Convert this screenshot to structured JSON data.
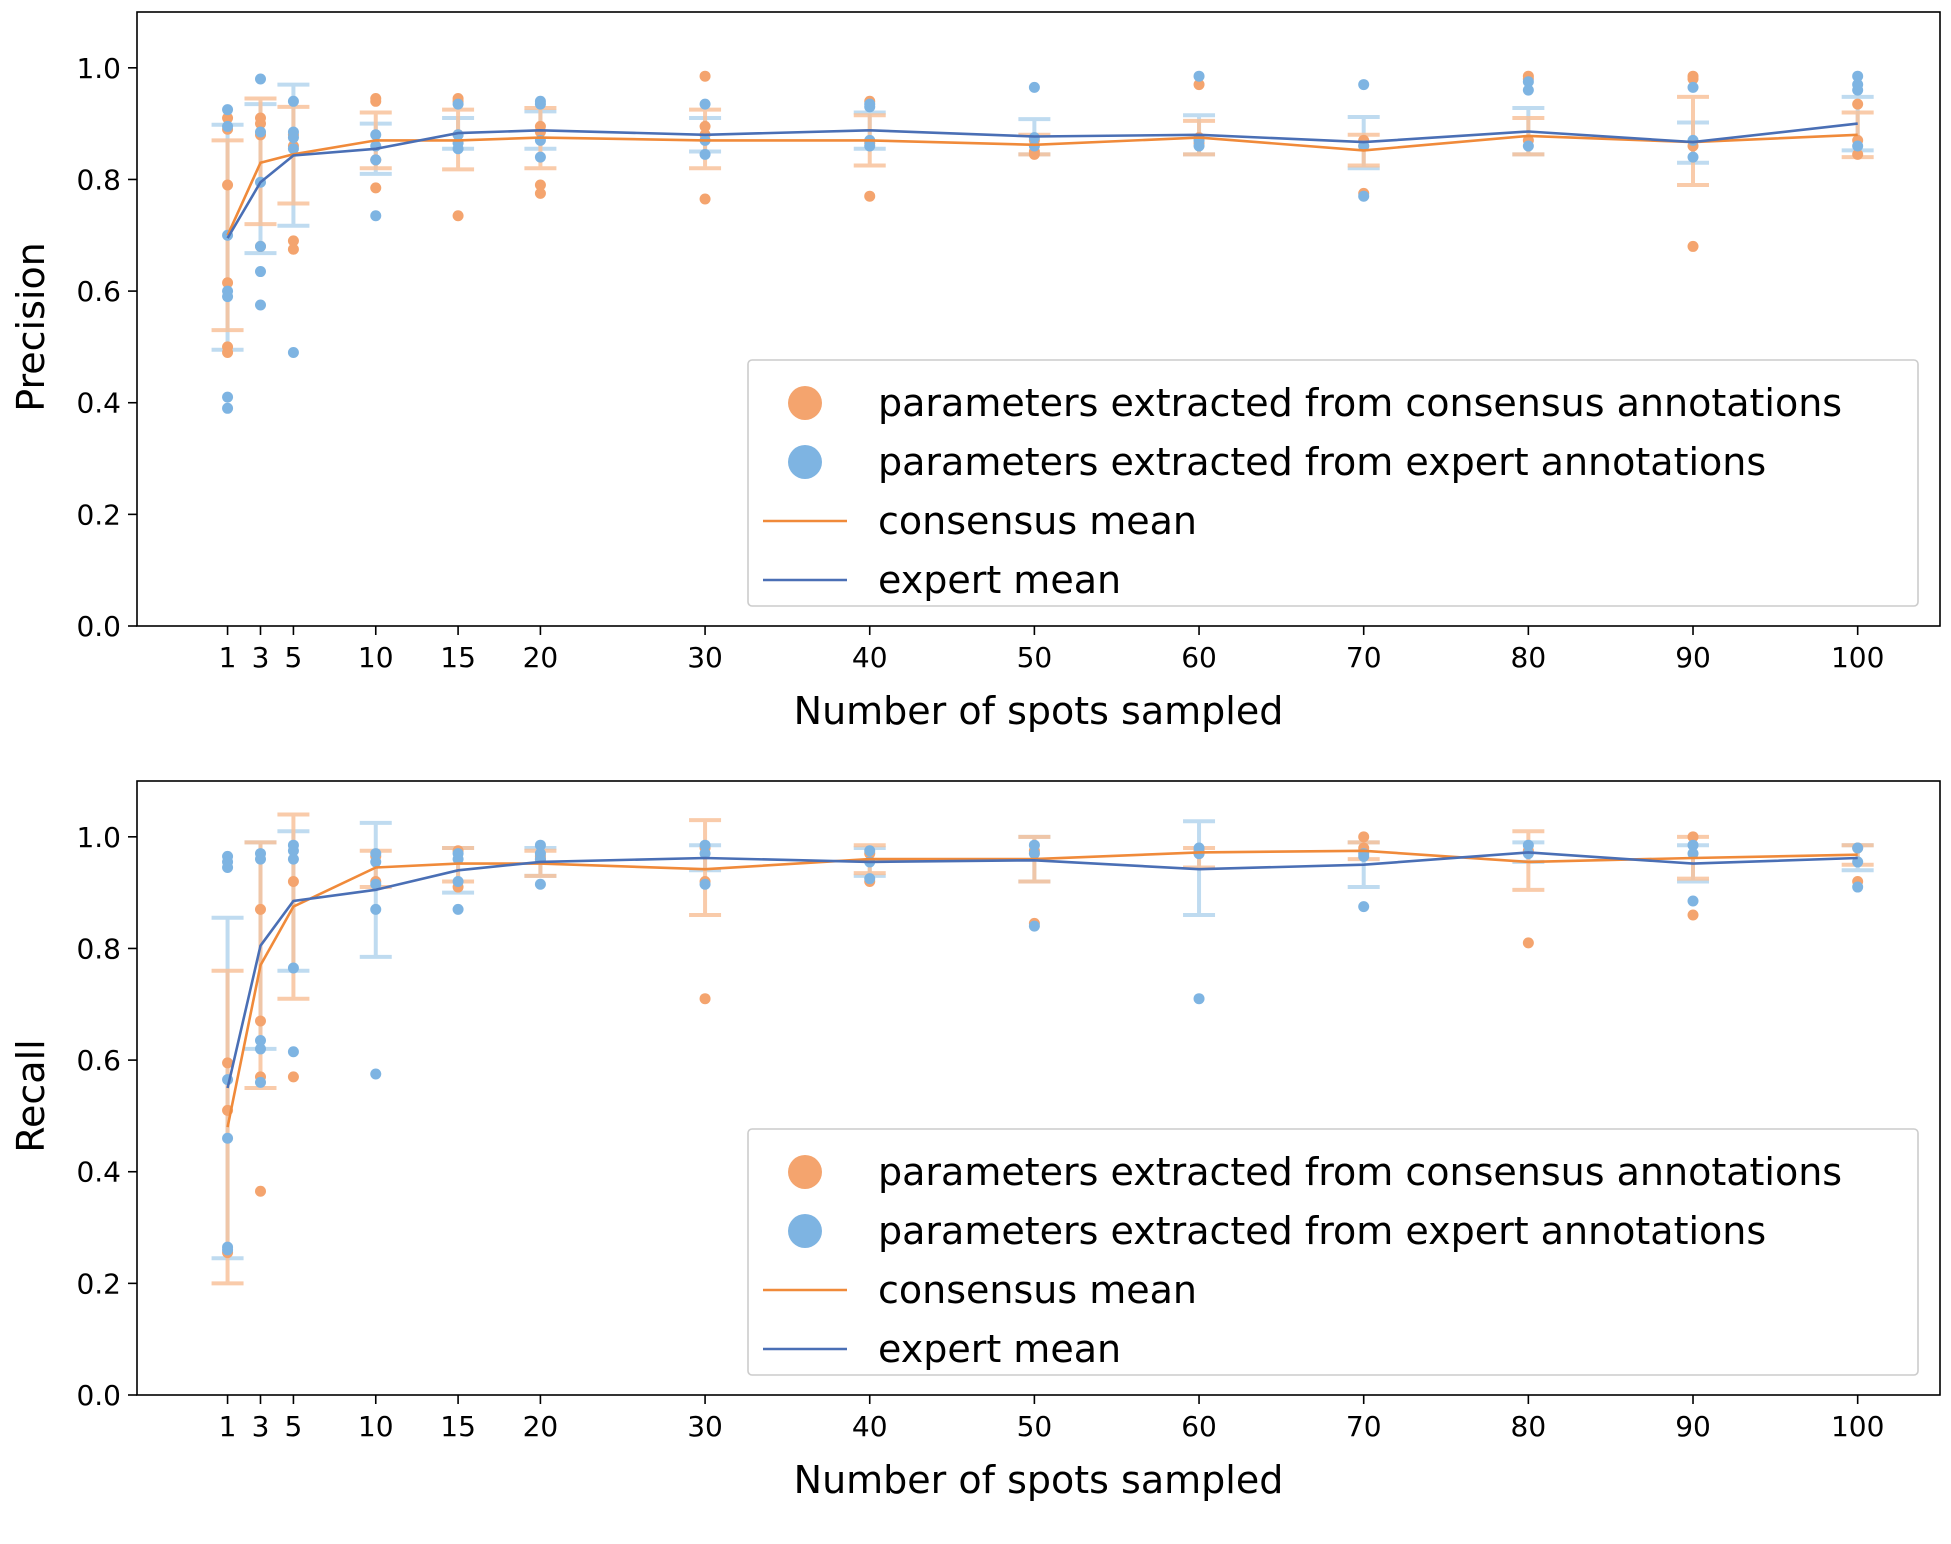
{
  "colors": {
    "consensus_points": "#F4A46E",
    "expert_points": "#7EB4E2",
    "consensus_mean": "#F08A3A",
    "expert_mean": "#4A6FB5",
    "consensus_error": "#F8C39C",
    "expert_error": "#B5D5EE",
    "overlap_error": "#C9C9C9"
  },
  "chart_data": [
    {
      "type": "scatter",
      "panel": "precision",
      "xlabel": "Number of spots sampled",
      "ylabel": "Precision",
      "x_ticks": [
        1,
        3,
        5,
        10,
        15,
        20,
        30,
        40,
        50,
        60,
        70,
        80,
        90,
        100
      ],
      "y_ticks": [
        "0.0",
        "0.2",
        "0.4",
        "0.6",
        "0.8",
        "1.0"
      ],
      "xlim": [
        -4.5,
        105
      ],
      "ylim": [
        0,
        1.1
      ],
      "grid": false,
      "legend_position": "lower-right",
      "legend": {
        "consensus_points": "parameters extracted from consensus annotations",
        "expert_points": "parameters extracted from expert annotations",
        "consensus_mean": "consensus mean",
        "expert_mean": "expert mean"
      },
      "x": [
        1,
        3,
        5,
        10,
        15,
        20,
        30,
        40,
        50,
        60,
        70,
        80,
        90,
        100
      ],
      "consensus_mean": [
        0.7,
        0.83,
        0.845,
        0.87,
        0.87,
        0.875,
        0.87,
        0.87,
        0.862,
        0.875,
        0.852,
        0.878,
        0.867,
        0.88
      ],
      "expert_mean": [
        0.695,
        0.795,
        0.843,
        0.855,
        0.883,
        0.888,
        0.88,
        0.888,
        0.877,
        0.88,
        0.867,
        0.886,
        0.867,
        0.9
      ],
      "consensus_error": [
        [
          0.53,
          0.87
        ],
        [
          0.72,
          0.945
        ],
        [
          0.757,
          0.93
        ],
        [
          0.82,
          0.92
        ],
        [
          0.818,
          0.925
        ],
        [
          0.82,
          0.928
        ],
        [
          0.82,
          0.925
        ],
        [
          0.825,
          0.915
        ],
        [
          0.845,
          0.88
        ],
        [
          0.845,
          0.905
        ],
        [
          0.825,
          0.88
        ],
        [
          0.845,
          0.91
        ],
        [
          0.79,
          0.948
        ],
        [
          0.84,
          0.92
        ]
      ],
      "expert_error": [
        [
          0.495,
          0.898
        ],
        [
          0.668,
          0.935
        ],
        [
          0.717,
          0.97
        ],
        [
          0.81,
          0.9
        ],
        [
          0.855,
          0.91
        ],
        [
          0.855,
          0.922
        ],
        [
          0.85,
          0.91
        ],
        [
          0.855,
          0.92
        ],
        [
          0.845,
          0.908
        ],
        [
          0.845,
          0.915
        ],
        [
          0.82,
          0.912
        ],
        [
          0.845,
          0.928
        ],
        [
          0.83,
          0.902
        ],
        [
          0.852,
          0.948
        ]
      ],
      "consensus_points": [
        [
          1,
          0.79
        ],
        [
          1,
          0.615
        ],
        [
          1,
          0.5
        ],
        [
          1,
          0.49
        ],
        [
          1,
          0.89
        ],
        [
          1,
          0.91
        ],
        [
          3,
          0.91
        ],
        [
          3,
          0.9
        ],
        [
          3,
          0.88
        ],
        [
          3,
          0.68
        ],
        [
          5,
          0.69
        ],
        [
          5,
          0.675
        ],
        [
          5,
          0.86
        ],
        [
          5,
          0.88
        ],
        [
          10,
          0.945
        ],
        [
          10,
          0.94
        ],
        [
          10,
          0.785
        ],
        [
          10,
          0.835
        ],
        [
          15,
          0.945
        ],
        [
          15,
          0.94
        ],
        [
          15,
          0.735
        ],
        [
          15,
          0.88
        ],
        [
          20,
          0.79
        ],
        [
          20,
          0.775
        ],
        [
          20,
          0.885
        ],
        [
          20,
          0.895
        ],
        [
          30,
          0.985
        ],
        [
          30,
          0.895
        ],
        [
          30,
          0.765
        ],
        [
          30,
          0.88
        ],
        [
          40,
          0.94
        ],
        [
          40,
          0.77
        ],
        [
          40,
          0.865
        ],
        [
          50,
          0.85
        ],
        [
          50,
          0.845
        ],
        [
          50,
          0.87
        ],
        [
          60,
          0.97
        ],
        [
          60,
          0.865
        ],
        [
          60,
          0.875
        ],
        [
          70,
          0.775
        ],
        [
          70,
          0.86
        ],
        [
          70,
          0.87
        ],
        [
          80,
          0.985
        ],
        [
          80,
          0.98
        ],
        [
          80,
          0.87
        ],
        [
          90,
          0.985
        ],
        [
          90,
          0.98
        ],
        [
          90,
          0.68
        ],
        [
          90,
          0.86
        ],
        [
          100,
          0.935
        ],
        [
          100,
          0.845
        ],
        [
          100,
          0.87
        ]
      ],
      "expert_points": [
        [
          1,
          0.925
        ],
        [
          1,
          0.895
        ],
        [
          1,
          0.7
        ],
        [
          1,
          0.6
        ],
        [
          1,
          0.59
        ],
        [
          1,
          0.41
        ],
        [
          1,
          0.39
        ],
        [
          3,
          0.98
        ],
        [
          3,
          0.885
        ],
        [
          3,
          0.795
        ],
        [
          3,
          0.68
        ],
        [
          3,
          0.635
        ],
        [
          3,
          0.575
        ],
        [
          5,
          0.94
        ],
        [
          5,
          0.885
        ],
        [
          5,
          0.875
        ],
        [
          5,
          0.855
        ],
        [
          5,
          0.49
        ],
        [
          10,
          0.88
        ],
        [
          10,
          0.86
        ],
        [
          10,
          0.835
        ],
        [
          10,
          0.735
        ],
        [
          15,
          0.935
        ],
        [
          15,
          0.88
        ],
        [
          15,
          0.865
        ],
        [
          15,
          0.855
        ],
        [
          20,
          0.94
        ],
        [
          20,
          0.935
        ],
        [
          20,
          0.87
        ],
        [
          20,
          0.84
        ],
        [
          30,
          0.935
        ],
        [
          30,
          0.87
        ],
        [
          30,
          0.845
        ],
        [
          40,
          0.935
        ],
        [
          40,
          0.93
        ],
        [
          40,
          0.87
        ],
        [
          40,
          0.86
        ],
        [
          50,
          0.965
        ],
        [
          50,
          0.875
        ],
        [
          50,
          0.86
        ],
        [
          60,
          0.985
        ],
        [
          60,
          0.86
        ],
        [
          60,
          0.87
        ],
        [
          70,
          0.97
        ],
        [
          70,
          0.86
        ],
        [
          70,
          0.77
        ],
        [
          80,
          0.975
        ],
        [
          80,
          0.96
        ],
        [
          80,
          0.86
        ],
        [
          90,
          0.965
        ],
        [
          90,
          0.87
        ],
        [
          90,
          0.84
        ],
        [
          100,
          0.985
        ],
        [
          100,
          0.97
        ],
        [
          100,
          0.96
        ],
        [
          100,
          0.86
        ]
      ]
    },
    {
      "type": "scatter",
      "panel": "recall",
      "xlabel": "Number of spots sampled",
      "ylabel": "Recall",
      "x_ticks": [
        1,
        3,
        5,
        10,
        15,
        20,
        30,
        40,
        50,
        60,
        70,
        80,
        90,
        100
      ],
      "y_ticks": [
        "0.0",
        "0.2",
        "0.4",
        "0.6",
        "0.8",
        "1.0"
      ],
      "xlim": [
        -4.5,
        105
      ],
      "ylim": [
        0,
        1.1
      ],
      "grid": false,
      "legend_position": "lower-right",
      "legend": {
        "consensus_points": "parameters extracted from consensus annotations",
        "expert_points": "parameters extracted from expert annotations",
        "consensus_mean": "consensus mean",
        "expert_mean": "expert mean"
      },
      "x": [
        1,
        3,
        5,
        10,
        15,
        20,
        30,
        40,
        50,
        60,
        70,
        80,
        90,
        100
      ],
      "consensus_mean": [
        0.48,
        0.77,
        0.875,
        0.945,
        0.952,
        0.952,
        0.942,
        0.96,
        0.96,
        0.972,
        0.975,
        0.955,
        0.962,
        0.968
      ],
      "expert_mean": [
        0.55,
        0.805,
        0.885,
        0.905,
        0.94,
        0.955,
        0.962,
        0.955,
        0.958,
        0.942,
        0.95,
        0.972,
        0.952,
        0.962
      ],
      "consensus_error": [
        [
          0.2,
          0.76
        ],
        [
          0.55,
          0.99
        ],
        [
          0.71,
          1.04
        ],
        [
          0.91,
          0.975
        ],
        [
          0.92,
          0.98
        ],
        [
          0.93,
          0.975
        ],
        [
          0.86,
          1.03
        ],
        [
          0.935,
          0.985
        ],
        [
          0.92,
          1.0
        ],
        [
          0.945,
          0.98
        ],
        [
          0.96,
          0.99
        ],
        [
          0.905,
          1.01
        ],
        [
          0.925,
          1.0
        ],
        [
          0.95,
          0.985
        ]
      ],
      "expert_error": [
        [
          0.245,
          0.855
        ],
        [
          0.62,
          0.99
        ],
        [
          0.76,
          1.01
        ],
        [
          0.785,
          1.025
        ],
        [
          0.9,
          0.98
        ],
        [
          0.93,
          0.98
        ],
        [
          0.94,
          0.985
        ],
        [
          0.93,
          0.98
        ],
        [
          0.92,
          1.0
        ],
        [
          0.86,
          1.028
        ],
        [
          0.91,
          0.99
        ],
        [
          0.955,
          0.99
        ],
        [
          0.92,
          0.985
        ],
        [
          0.94,
          0.985
        ]
      ],
      "consensus_points": [
        [
          1,
          0.595
        ],
        [
          1,
          0.51
        ],
        [
          1,
          0.255
        ],
        [
          3,
          0.87
        ],
        [
          3,
          0.67
        ],
        [
          3,
          0.57
        ],
        [
          3,
          0.365
        ],
        [
          5,
          0.92
        ],
        [
          5,
          0.57
        ],
        [
          10,
          0.965
        ],
        [
          10,
          0.92
        ],
        [
          15,
          0.975
        ],
        [
          15,
          0.91
        ],
        [
          20,
          0.965
        ],
        [
          20,
          0.96
        ],
        [
          30,
          0.98
        ],
        [
          30,
          0.92
        ],
        [
          30,
          0.71
        ],
        [
          40,
          0.97
        ],
        [
          40,
          0.92
        ],
        [
          50,
          0.975
        ],
        [
          50,
          0.845
        ],
        [
          60,
          0.975
        ],
        [
          60,
          0.97
        ],
        [
          70,
          1.0
        ],
        [
          70,
          0.98
        ],
        [
          80,
          0.975
        ],
        [
          80,
          0.81
        ],
        [
          90,
          1.0
        ],
        [
          90,
          0.86
        ],
        [
          100,
          0.98
        ],
        [
          100,
          0.92
        ]
      ],
      "expert_points": [
        [
          1,
          0.965
        ],
        [
          1,
          0.955
        ],
        [
          1,
          0.945
        ],
        [
          1,
          0.565
        ],
        [
          1,
          0.46
        ],
        [
          1,
          0.265
        ],
        [
          1,
          0.26
        ],
        [
          3,
          0.97
        ],
        [
          3,
          0.96
        ],
        [
          3,
          0.635
        ],
        [
          3,
          0.62
        ],
        [
          3,
          0.56
        ],
        [
          5,
          0.985
        ],
        [
          5,
          0.975
        ],
        [
          5,
          0.96
        ],
        [
          5,
          0.765
        ],
        [
          5,
          0.615
        ],
        [
          10,
          0.97
        ],
        [
          10,
          0.955
        ],
        [
          10,
          0.915
        ],
        [
          10,
          0.87
        ],
        [
          10,
          0.575
        ],
        [
          15,
          0.97
        ],
        [
          15,
          0.96
        ],
        [
          15,
          0.92
        ],
        [
          15,
          0.87
        ],
        [
          20,
          0.985
        ],
        [
          20,
          0.97
        ],
        [
          20,
          0.96
        ],
        [
          20,
          0.915
        ],
        [
          30,
          0.985
        ],
        [
          30,
          0.97
        ],
        [
          30,
          0.915
        ],
        [
          40,
          0.975
        ],
        [
          40,
          0.955
        ],
        [
          40,
          0.925
        ],
        [
          50,
          0.985
        ],
        [
          50,
          0.97
        ],
        [
          50,
          0.84
        ],
        [
          60,
          0.98
        ],
        [
          60,
          0.97
        ],
        [
          60,
          0.71
        ],
        [
          70,
          0.97
        ],
        [
          70,
          0.965
        ],
        [
          70,
          0.875
        ],
        [
          80,
          0.985
        ],
        [
          80,
          0.97
        ],
        [
          90,
          0.985
        ],
        [
          90,
          0.97
        ],
        [
          90,
          0.885
        ],
        [
          100,
          0.98
        ],
        [
          100,
          0.955
        ],
        [
          100,
          0.91
        ]
      ]
    }
  ]
}
